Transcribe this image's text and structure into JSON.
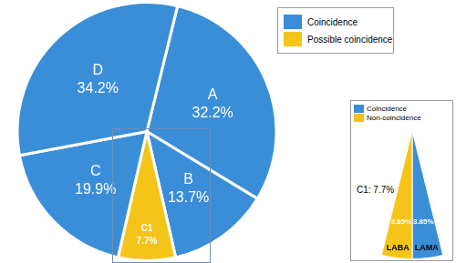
{
  "chart_data": [
    {
      "type": "pie",
      "categories": [
        "A",
        "B",
        "C1",
        "C",
        "D"
      ],
      "values": [
        32.2,
        13.7,
        7.7,
        19.9,
        34.2
      ],
      "value_labels": [
        "32.2%",
        "13.7%",
        "7.7%",
        "19.9%",
        "34.2%"
      ],
      "colors": [
        "#3a8ed8",
        "#3a8ed8",
        "#f5c418",
        "#3a8ed8",
        "#3a8ed8"
      ],
      "data_labels": true,
      "legend": "top-right",
      "legend_entries": [
        {
          "name": "Coincidence",
          "color": "#3a8ed8"
        },
        {
          "name": "Possible coincidence",
          "color": "#f5c418"
        }
      ]
    },
    {
      "type": "pie",
      "title": "C1: 7.7%",
      "categories": [
        "LAMA",
        "LABA"
      ],
      "values": [
        3.85,
        3.85
      ],
      "value_labels": [
        "3.85%",
        "3.85%"
      ],
      "colors": [
        "#3a8ed8",
        "#f5c418"
      ],
      "data_labels": true,
      "legend": "top-left",
      "legend_entries": [
        {
          "name": "Coincidence",
          "color": "#3a8ed8"
        },
        {
          "name": "Non-coincidence",
          "color": "#f5c418"
        }
      ]
    }
  ]
}
